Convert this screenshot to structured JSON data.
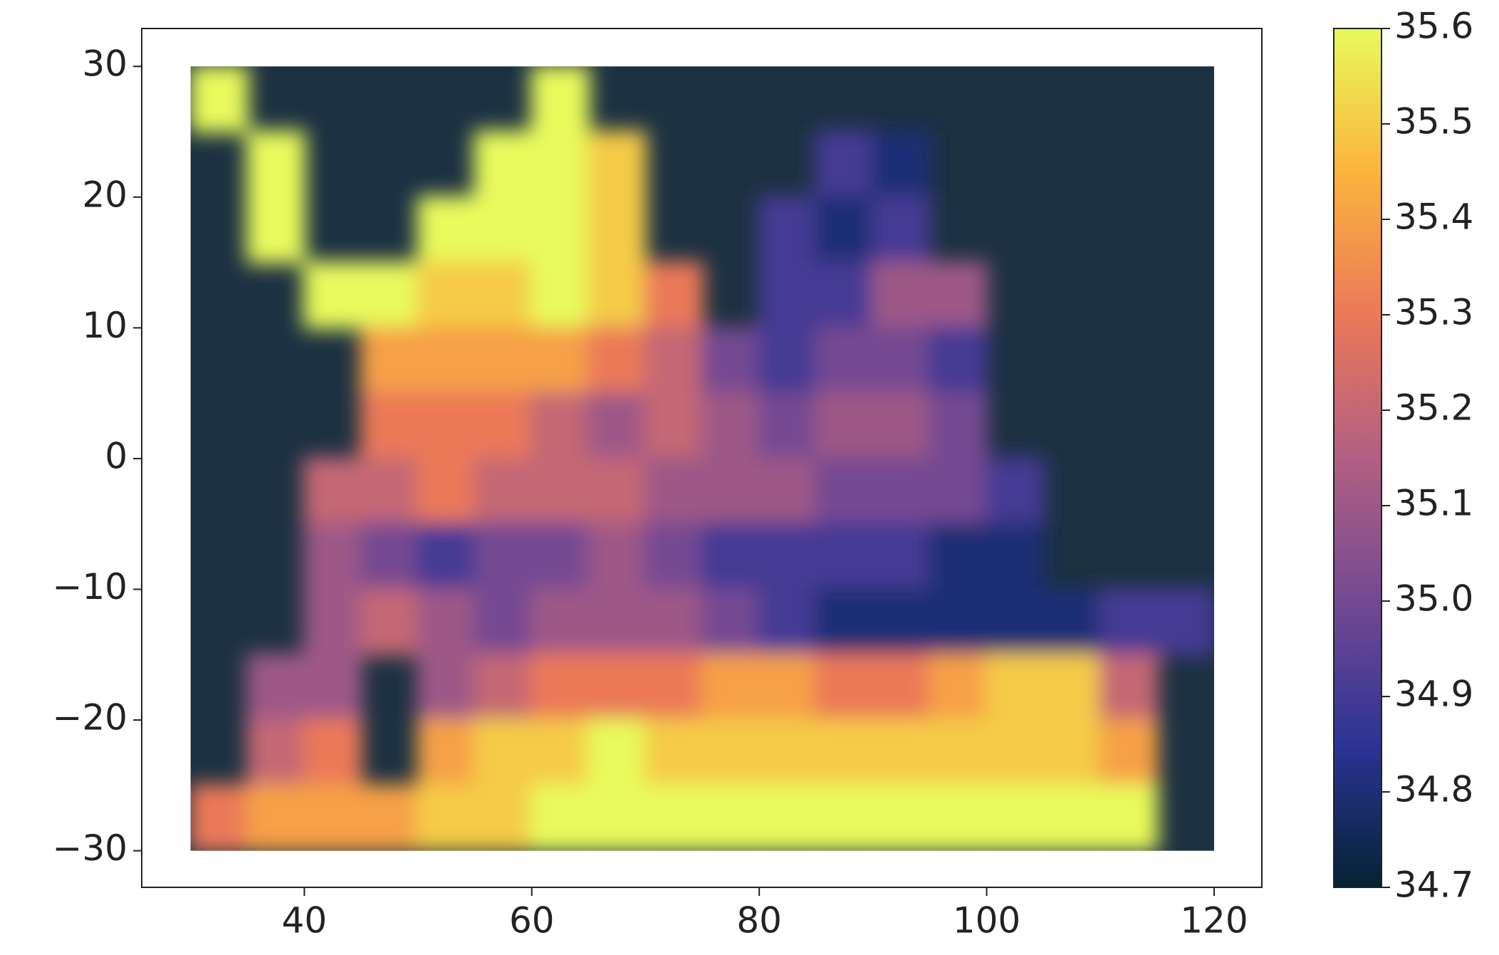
{
  "chart_data": {
    "type": "heatmap",
    "x": [
      32.5,
      37.5,
      42.5,
      47.5,
      52.5,
      57.5,
      62.5,
      67.5,
      72.5,
      77.5,
      82.5,
      87.5,
      92.5,
      97.5,
      102.5,
      107.5,
      112.5,
      117.5
    ],
    "y": [
      27.5,
      22.5,
      17.5,
      12.5,
      7.5,
      2.5,
      -2.5,
      -7.5,
      -12.5,
      -17.5,
      -22.5,
      -27.5
    ],
    "values": [
      [
        35.6,
        null,
        null,
        null,
        null,
        null,
        35.6,
        null,
        null,
        null,
        null,
        null,
        null,
        null,
        null,
        null,
        null,
        null
      ],
      [
        null,
        35.6,
        null,
        null,
        null,
        35.6,
        35.6,
        35.5,
        null,
        null,
        null,
        34.9,
        34.8,
        null,
        null,
        null,
        null,
        null
      ],
      [
        null,
        35.6,
        null,
        null,
        35.6,
        35.6,
        35.6,
        35.5,
        null,
        null,
        34.9,
        34.8,
        34.9,
        null,
        null,
        null,
        null,
        null
      ],
      [
        null,
        null,
        35.6,
        35.6,
        35.5,
        35.5,
        35.6,
        35.5,
        35.3,
        null,
        34.9,
        34.9,
        35.1,
        35.1,
        null,
        null,
        null,
        null
      ],
      [
        null,
        null,
        null,
        35.4,
        35.4,
        35.4,
        35.4,
        35.3,
        35.2,
        35.0,
        34.9,
        35.0,
        35.0,
        34.9,
        null,
        null,
        null,
        null
      ],
      [
        null,
        null,
        null,
        35.3,
        35.3,
        35.3,
        35.2,
        35.1,
        35.2,
        35.1,
        35.0,
        35.1,
        35.1,
        35.0,
        null,
        null,
        null,
        null
      ],
      [
        null,
        null,
        35.2,
        35.2,
        35.3,
        35.2,
        35.2,
        35.2,
        35.1,
        35.1,
        35.1,
        35.0,
        35.0,
        35.0,
        34.9,
        null,
        null,
        null
      ],
      [
        null,
        null,
        35.1,
        35.0,
        34.9,
        35.0,
        35.0,
        35.1,
        35.0,
        34.9,
        34.9,
        34.9,
        34.9,
        34.8,
        34.8,
        null,
        null,
        null
      ],
      [
        null,
        null,
        35.1,
        35.2,
        35.1,
        35.0,
        35.1,
        35.1,
        35.1,
        35.0,
        34.9,
        34.8,
        34.8,
        34.8,
        34.8,
        34.8,
        34.9,
        34.9
      ],
      [
        null,
        35.1,
        35.1,
        null,
        35.1,
        35.2,
        35.3,
        35.3,
        35.3,
        35.4,
        35.4,
        35.3,
        35.3,
        35.4,
        35.5,
        35.5,
        35.2,
        null
      ],
      [
        null,
        35.2,
        35.3,
        null,
        35.4,
        35.5,
        35.5,
        35.6,
        35.5,
        35.5,
        35.5,
        35.5,
        35.5,
        35.5,
        35.5,
        35.5,
        35.4,
        null
      ],
      [
        35.3,
        35.4,
        35.4,
        35.4,
        35.5,
        35.5,
        35.6,
        35.6,
        35.6,
        35.6,
        35.6,
        35.6,
        35.6,
        35.6,
        35.6,
        35.6,
        35.6,
        null
      ]
    ],
    "xlim": [
      25.7,
      124.2
    ],
    "ylim": [
      -32.8,
      32.9
    ],
    "xticks": [
      40,
      60,
      80,
      100,
      120
    ],
    "yticks": [
      {
        "value": -30,
        "label": "−30"
      },
      {
        "value": -20,
        "label": "−20"
      },
      {
        "value": -10,
        "label": "−10"
      },
      0,
      10,
      20,
      30
    ],
    "colormap": [
      "#042333",
      "#2c3395",
      "#744992",
      "#b15f82",
      "#eb7958",
      "#fbb43d",
      "#e8fa5b"
    ],
    "clim": [
      34.7,
      35.6
    ],
    "cticks": [
      34.7,
      34.8,
      34.9,
      {
        "value": 35,
        "label": "35.0"
      },
      35.1,
      35.2,
      35.3,
      35.4,
      35.5,
      35.6
    ]
  }
}
